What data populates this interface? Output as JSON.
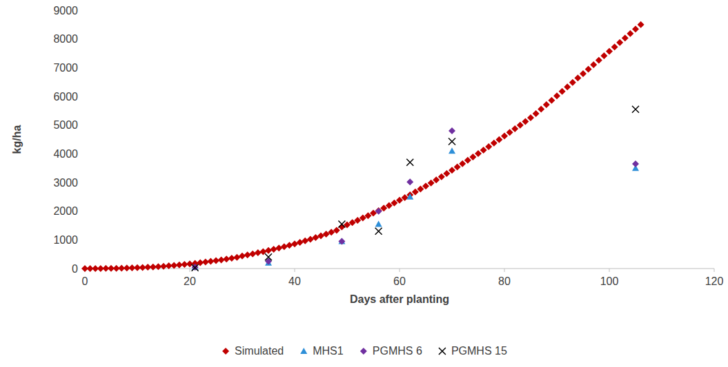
{
  "chart_data": {
    "type": "scatter",
    "x_label": "Days after planting",
    "y_label": "kg/ha",
    "xlim": [
      0,
      120
    ],
    "xticks": [
      0,
      20,
      40,
      60,
      80,
      100,
      120
    ],
    "ylim": [
      0,
      9000
    ],
    "yticks": [
      0,
      1000,
      2000,
      3000,
      4000,
      5000,
      6000,
      7000,
      8000,
      9000
    ],
    "grid": false,
    "legend": "bottom",
    "series": [
      {
        "name": "Simulated",
        "color": "#c00000",
        "marker": "diamond",
        "x": [
          0,
          1,
          2,
          3,
          4,
          5,
          6,
          7,
          8,
          9,
          10,
          11,
          12,
          13,
          14,
          15,
          16,
          17,
          18,
          19,
          20,
          21,
          22,
          23,
          24,
          25,
          26,
          27,
          28,
          29,
          30,
          31,
          32,
          33,
          34,
          35,
          36,
          37,
          38,
          39,
          40,
          41,
          42,
          43,
          44,
          45,
          46,
          47,
          48,
          49,
          50,
          51,
          52,
          53,
          54,
          55,
          56,
          57,
          58,
          59,
          60,
          61,
          62,
          63,
          64,
          65,
          66,
          67,
          68,
          69,
          70,
          71,
          72,
          73,
          74,
          75,
          76,
          77,
          78,
          79,
          80,
          81,
          82,
          83,
          84,
          85,
          86,
          87,
          88,
          89,
          90,
          91,
          92,
          93,
          94,
          95,
          96,
          97,
          98,
          99,
          100,
          101,
          102,
          103,
          104,
          105,
          106
        ],
        "values": [
          0,
          0,
          1,
          2,
          4,
          6,
          9,
          13,
          18,
          24,
          30,
          38,
          47,
          57,
          68,
          80,
          94,
          109,
          125,
          143,
          162,
          183,
          205,
          228,
          252,
          277,
          303,
          330,
          358,
          388,
          440,
          475,
          512,
          550,
          590,
          630,
          672,
          716,
          762,
          810,
          860,
          912,
          966,
          1022,
          1080,
          1140,
          1202,
          1266,
          1332,
          1450,
          1525,
          1602,
          1681,
          1762,
          1845,
          1930,
          2017,
          2106,
          2196,
          2288,
          2381,
          2475,
          2570,
          2670,
          2772,
          2876,
          2982,
          3090,
          3200,
          3312,
          3425,
          3540,
          3656,
          3773,
          3891,
          4010,
          4130,
          4251,
          4373,
          4496,
          4620,
          4745,
          4871,
          4998,
          5126,
          5255,
          5400,
          5555,
          5710,
          5865,
          6020,
          6175,
          6330,
          6485,
          6640,
          6795,
          6950,
          7105,
          7260,
          7415,
          7570,
          7725,
          7880,
          8035,
          8190,
          8345,
          8500
        ]
      },
      {
        "name": "MHS1",
        "color": "#2e8fd8",
        "marker": "triangle",
        "x": [
          21,
          35,
          49,
          56,
          62,
          70,
          105
        ],
        "values": [
          50,
          200,
          950,
          1550,
          2500,
          4100,
          3500
        ]
      },
      {
        "name": "PGMHS 6",
        "color": "#7030a0",
        "marker": "diamond",
        "x": [
          21,
          35,
          49,
          56,
          62,
          70,
          105
        ],
        "values": [
          50,
          250,
          950,
          2000,
          3020,
          4800,
          3650
        ]
      },
      {
        "name": "PGMHS 15",
        "color": "#000000",
        "marker": "cross",
        "x": [
          21,
          35,
          49,
          56,
          62,
          70,
          105
        ],
        "values": [
          30,
          400,
          1550,
          1300,
          3700,
          4430,
          5550
        ]
      }
    ]
  }
}
